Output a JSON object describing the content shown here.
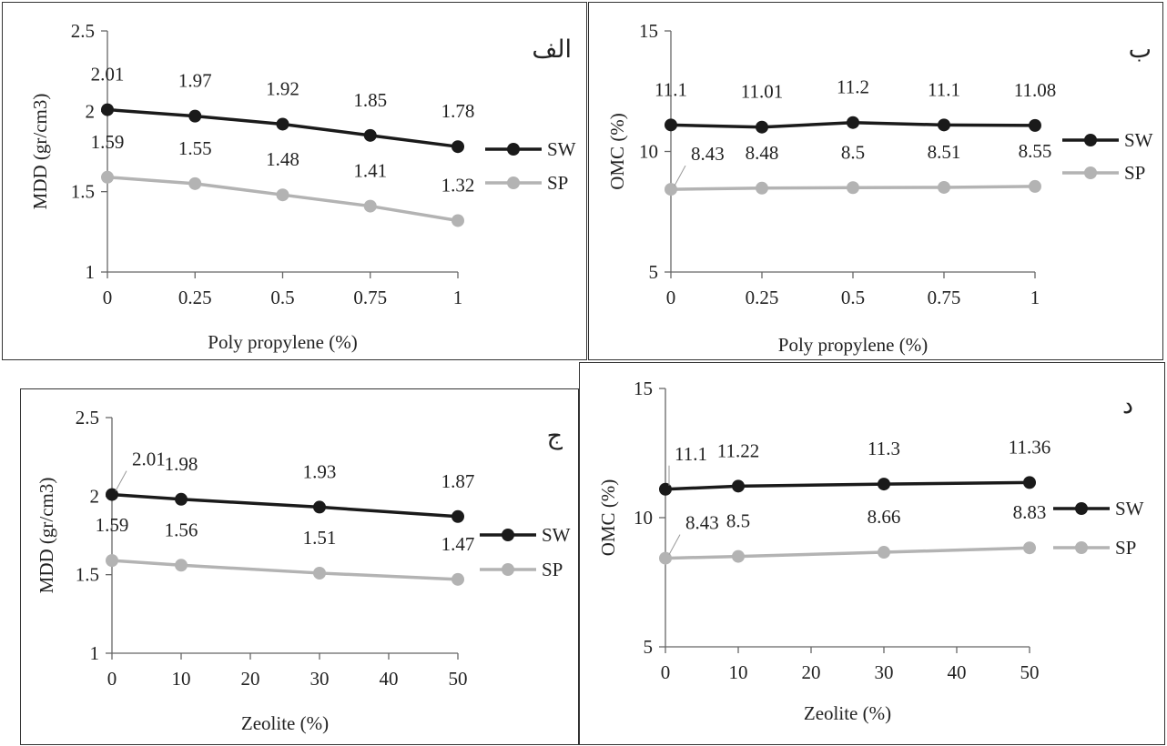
{
  "chart_data": [
    {
      "type": "line",
      "panel_label": "الف",
      "xlabel": "Poly propylene (%)",
      "ylabel": "MDD (gr/cm3)",
      "x": [
        0,
        0.25,
        0.5,
        0.75,
        1
      ],
      "x_tick_labels": [
        "0",
        "0.25",
        "0.5",
        "0.75",
        "1"
      ],
      "ylim": [
        1,
        2.5
      ],
      "y_ticks": [
        1,
        1.5,
        2,
        2.5
      ],
      "y_tick_labels": [
        "1",
        "1.5",
        "2",
        "2.5"
      ],
      "legend": "right",
      "grid": false,
      "series": [
        {
          "name": "SW",
          "color": "#1a1a1a",
          "values": [
            2.01,
            1.97,
            1.92,
            1.85,
            1.78
          ],
          "labels": [
            "2.01",
            "1.97",
            "1.92",
            "1.85",
            "1.78"
          ]
        },
        {
          "name": "SP",
          "color": "#b3b3b3",
          "values": [
            1.59,
            1.55,
            1.48,
            1.41,
            1.32
          ],
          "labels": [
            "1.59",
            "1.55",
            "1.48",
            "1.41",
            "1.32"
          ]
        }
      ]
    },
    {
      "type": "line",
      "panel_label": "ب",
      "xlabel": "Poly propylene (%)",
      "ylabel": "OMC (%)",
      "x": [
        0,
        0.25,
        0.5,
        0.75,
        1
      ],
      "x_tick_labels": [
        "0",
        "0.25",
        "0.5",
        "0.75",
        "1"
      ],
      "ylim": [
        5,
        15
      ],
      "y_ticks": [
        5,
        10,
        15
      ],
      "y_tick_labels": [
        "5",
        "10",
        "15"
      ],
      "legend": "right",
      "grid": false,
      "series": [
        {
          "name": "SW",
          "color": "#1a1a1a",
          "values": [
            11.1,
            11.01,
            11.2,
            11.1,
            11.08
          ],
          "labels": [
            "11.1",
            "11.01",
            "11.2",
            "11.1",
            "11.08"
          ]
        },
        {
          "name": "SP",
          "color": "#b3b3b3",
          "values": [
            8.43,
            8.48,
            8.5,
            8.51,
            8.55
          ],
          "labels": [
            "8.43",
            "8.48",
            "8.5",
            "8.51",
            "8.55"
          ]
        }
      ]
    },
    {
      "type": "line",
      "panel_label": "ج",
      "xlabel": "Zeolite (%)",
      "ylabel": "MDD (gr/cm3)",
      "x": [
        0,
        10,
        30,
        50
      ],
      "xlim": [
        0,
        50
      ],
      "x_ticks": [
        0,
        10,
        20,
        30,
        40,
        50
      ],
      "x_tick_labels": [
        "0",
        "10",
        "20",
        "30",
        "40",
        "50"
      ],
      "ylim": [
        1,
        2.5
      ],
      "y_ticks": [
        1,
        1.5,
        2,
        2.5
      ],
      "y_tick_labels": [
        "1",
        "1.5",
        "2",
        "2.5"
      ],
      "legend": "right",
      "grid": false,
      "series": [
        {
          "name": "SW",
          "color": "#1a1a1a",
          "values": [
            2.01,
            1.98,
            1.93,
            1.87
          ],
          "labels": [
            "2.01",
            "1.98",
            "1.93",
            "1.87"
          ]
        },
        {
          "name": "SP",
          "color": "#b3b3b3",
          "values": [
            1.59,
            1.56,
            1.51,
            1.47
          ],
          "labels": [
            "1.59",
            "1.56",
            "1.51",
            "1.47"
          ]
        }
      ]
    },
    {
      "type": "line",
      "panel_label": "د",
      "xlabel": "Zeolite (%)",
      "ylabel": "OMC (%)",
      "x": [
        0,
        10,
        30,
        50
      ],
      "xlim": [
        0,
        50
      ],
      "x_ticks": [
        0,
        10,
        20,
        30,
        40,
        50
      ],
      "x_tick_labels": [
        "0",
        "10",
        "20",
        "30",
        "40",
        "50"
      ],
      "ylim": [
        5,
        15
      ],
      "y_ticks": [
        5,
        10,
        15
      ],
      "y_tick_labels": [
        "5",
        "10",
        "15"
      ],
      "legend": "right",
      "grid": false,
      "series": [
        {
          "name": "SW",
          "color": "#1a1a1a",
          "values": [
            11.1,
            11.22,
            11.3,
            11.36
          ],
          "labels": [
            "11.1",
            "11.22",
            "11.3",
            "11.36"
          ]
        },
        {
          "name": "SP",
          "color": "#b3b3b3",
          "values": [
            8.43,
            8.5,
            8.66,
            8.83
          ],
          "labels": [
            "8.43",
            "8.5",
            "8.66",
            "8.83"
          ]
        }
      ]
    }
  ]
}
